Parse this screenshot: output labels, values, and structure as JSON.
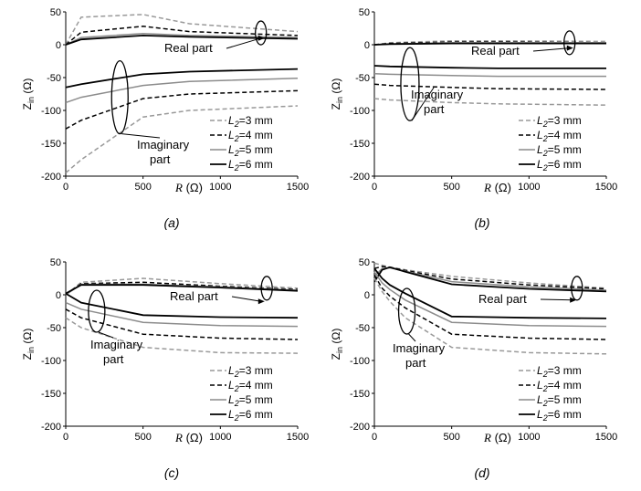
{
  "chart_data": [
    {
      "type": "line",
      "panel_label": "(a)",
      "xlabel": "R (Ω)",
      "ylabel": "Zin (Ω)",
      "xlim": [
        0,
        1500
      ],
      "ylim": [
        -200,
        50
      ],
      "xticks": [
        0,
        500,
        1000,
        1500
      ],
      "yticks": [
        -200,
        -150,
        -100,
        -50,
        0,
        50
      ],
      "grid": false,
      "legend_position": "bottom-right",
      "annotations": [
        "Real part",
        "Imaginary part"
      ],
      "x": [
        0,
        100,
        500,
        800,
        1500
      ],
      "series": [
        {
          "name": "L2=3 mm",
          "part": "real",
          "values": [
            0,
            42,
            46,
            32,
            20
          ]
        },
        {
          "name": "L2=4 mm",
          "part": "real",
          "values": [
            0,
            19,
            28,
            20,
            14
          ]
        },
        {
          "name": "L2=5 mm",
          "part": "real",
          "values": [
            0,
            11,
            17,
            14,
            11
          ]
        },
        {
          "name": "L2=6 mm",
          "part": "real",
          "values": [
            0,
            8,
            14,
            12,
            9
          ]
        },
        {
          "name": "L2=3 mm",
          "part": "imaginary",
          "values": [
            -195,
            -175,
            -110,
            -100,
            -93
          ]
        },
        {
          "name": "L2=4 mm",
          "part": "imaginary",
          "values": [
            -128,
            -115,
            -82,
            -75,
            -70
          ]
        },
        {
          "name": "L2=5 mm",
          "part": "imaginary",
          "values": [
            -88,
            -80,
            -62,
            -56,
            -51
          ]
        },
        {
          "name": "L2=6 mm",
          "part": "imaginary",
          "values": [
            -65,
            -60,
            -45,
            -41,
            -37
          ]
        }
      ]
    },
    {
      "type": "line",
      "panel_label": "(b)",
      "xlabel": "R (Ω)",
      "ylabel": "Zin (Ω)",
      "xlim": [
        0,
        1500
      ],
      "ylim": [
        -200,
        50
      ],
      "xticks": [
        0,
        500,
        1000,
        1500
      ],
      "yticks": [
        -200,
        -150,
        -100,
        -50,
        0,
        50
      ],
      "grid": false,
      "legend_position": "bottom-right",
      "annotations": [
        "Real part",
        "Imaginary part"
      ],
      "x": [
        0,
        100,
        500,
        800,
        1500
      ],
      "series": [
        {
          "name": "L2=3 mm",
          "part": "real",
          "values": [
            0,
            3,
            6,
            6,
            5
          ]
        },
        {
          "name": "L2=4 mm",
          "part": "real",
          "values": [
            0,
            2,
            4,
            4,
            3
          ]
        },
        {
          "name": "L2=5 mm",
          "part": "real",
          "values": [
            0,
            1,
            3,
            3,
            3
          ]
        },
        {
          "name": "L2=6 mm",
          "part": "real",
          "values": [
            0,
            1,
            2,
            2,
            2
          ]
        },
        {
          "name": "L2=3 mm",
          "part": "imaginary",
          "values": [
            -82,
            -84,
            -88,
            -90,
            -92
          ]
        },
        {
          "name": "L2=4 mm",
          "part": "imaginary",
          "values": [
            -60,
            -62,
            -65,
            -67,
            -68
          ]
        },
        {
          "name": "L2=5 mm",
          "part": "imaginary",
          "values": [
            -44,
            -45,
            -47,
            -48,
            -48
          ]
        },
        {
          "name": "L2=6 mm",
          "part": "imaginary",
          "values": [
            -32,
            -33,
            -35,
            -36,
            -36
          ]
        }
      ]
    },
    {
      "type": "line",
      "panel_label": "(c)",
      "xlabel": "R (Ω)",
      "ylabel": "Zin (Ω)",
      "xlim": [
        0,
        1500
      ],
      "ylim": [
        -200,
        50
      ],
      "xticks": [
        0,
        500,
        1000,
        1500
      ],
      "yticks": [
        -200,
        -150,
        -100,
        -50,
        0,
        50
      ],
      "grid": false,
      "legend_position": "bottom-right",
      "annotations": [
        "Real part",
        "Imaginary part"
      ],
      "x": [
        0,
        100,
        500,
        1000,
        1500
      ],
      "series": [
        {
          "name": "L2=3 mm",
          "part": "real",
          "values": [
            0,
            19,
            25,
            17,
            10
          ]
        },
        {
          "name": "L2=4 mm",
          "part": "real",
          "values": [
            0,
            17,
            19,
            13,
            8
          ]
        },
        {
          "name": "L2=5 mm",
          "part": "real",
          "values": [
            0,
            16,
            16,
            12,
            7
          ]
        },
        {
          "name": "L2=6 mm",
          "part": "real",
          "values": [
            2,
            15,
            15,
            11,
            6
          ]
        },
        {
          "name": "L2=3 mm",
          "part": "imaginary",
          "values": [
            -35,
            -50,
            -80,
            -88,
            -89
          ]
        },
        {
          "name": "L2=4 mm",
          "part": "imaginary",
          "values": [
            -22,
            -35,
            -60,
            -66,
            -68
          ]
        },
        {
          "name": "L2=5 mm",
          "part": "imaginary",
          "values": [
            -12,
            -22,
            -42,
            -47,
            -48
          ]
        },
        {
          "name": "L2=6 mm",
          "part": "imaginary",
          "values": [
            2,
            -12,
            -31,
            -34,
            -35
          ]
        }
      ]
    },
    {
      "type": "line",
      "panel_label": "(d)",
      "xlabel": "R (Ω)",
      "ylabel": "Zin (Ω)",
      "xlim": [
        0,
        1500
      ],
      "ylim": [
        -200,
        50
      ],
      "xticks": [
        0,
        500,
        1000,
        1500
      ],
      "yticks": [
        -200,
        -150,
        -100,
        -50,
        0,
        50
      ],
      "grid": false,
      "legend_position": "bottom-right",
      "annotations": [
        "Real part",
        "Imaginary part"
      ],
      "x": [
        0,
        50,
        100,
        200,
        500,
        1000,
        1500
      ],
      "series": [
        {
          "name": "L2=3 mm",
          "part": "real",
          "values": [
            48,
            45,
            42,
            38,
            28,
            18,
            10
          ]
        },
        {
          "name": "L2=4 mm",
          "part": "real",
          "values": [
            40,
            43,
            42,
            37,
            24,
            15,
            9
          ]
        },
        {
          "name": "L2=5 mm",
          "part": "real",
          "values": [
            28,
            40,
            41,
            36,
            20,
            12,
            7
          ]
        },
        {
          "name": "L2=6 mm",
          "part": "real",
          "values": [
            20,
            38,
            42,
            35,
            16,
            9,
            5
          ]
        },
        {
          "name": "L2=3 mm",
          "part": "imaginary",
          "values": [
            25,
            5,
            -10,
            -35,
            -80,
            -88,
            -90
          ]
        },
        {
          "name": "L2=4 mm",
          "part": "imaginary",
          "values": [
            30,
            10,
            -2,
            -20,
            -60,
            -66,
            -68
          ]
        },
        {
          "name": "L2=5 mm",
          "part": "imaginary",
          "values": [
            35,
            18,
            8,
            -8,
            -42,
            -47,
            -48
          ]
        },
        {
          "name": "L2=6 mm",
          "part": "imaginary",
          "values": [
            40,
            25,
            15,
            2,
            -33,
            -35,
            -36
          ]
        }
      ]
    }
  ],
  "legend": [
    {
      "label": "L",
      "sub": "2",
      "suffix": "=3 mm",
      "style": "dash",
      "color": "#999999"
    },
    {
      "label": "L",
      "sub": "2",
      "suffix": "=4 mm",
      "style": "dash",
      "color": "#000000"
    },
    {
      "label": "L",
      "sub": "2",
      "suffix": "=5 mm",
      "style": "solid",
      "color": "#8c8c8c"
    },
    {
      "label": "L",
      "sub": "2",
      "suffix": "=6 mm",
      "style": "solid",
      "color": "#000000"
    }
  ],
  "text": {
    "ylabel_main": "Z",
    "ylabel_sub": "in",
    "ylabel_unit": "(Ω)",
    "xlabel_var": "R",
    "xlabel_unit": "(Ω)",
    "real_part": "Real part",
    "imag_line1": "Imaginary",
    "imag_line2": "part"
  }
}
